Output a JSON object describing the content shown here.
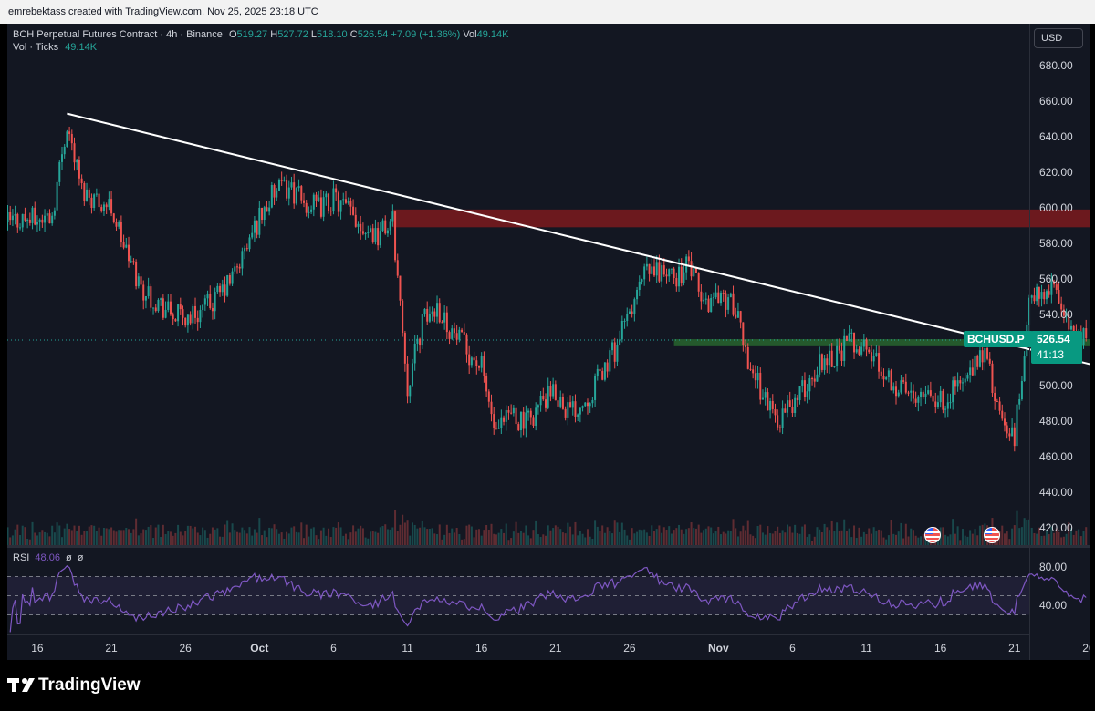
{
  "header": {
    "attribution": "emrebektass created with TradingView.com, Nov 25, 2025 23:18 UTC"
  },
  "legend": {
    "symbol": "BCH Perpetual Futures Contract · 4h · Binance",
    "o_label": "O",
    "o": "519.27",
    "h_label": "H",
    "h": "527.72",
    "l_label": "L",
    "l": "518.10",
    "c_label": "C",
    "c": "526.54",
    "change": "+7.09 (+1.36%)",
    "vol_label": "Vol",
    "vol": "49.14K",
    "vol_ticks_label": "Vol · Ticks",
    "vol_ticks": "49.14K"
  },
  "currency_button": "USD",
  "price_axis": [
    "680.00",
    "660.00",
    "640.00",
    "620.00",
    "600.00",
    "580.00",
    "560.00",
    "540.00",
    "500.00",
    "480.00",
    "460.00",
    "440.00",
    "420.00"
  ],
  "rsi_axis": [
    "80.00",
    "40.00"
  ],
  "rsi_legend": {
    "label": "RSI",
    "value": "48.06",
    "x1": "ø",
    "x2": "ø"
  },
  "time_axis": [
    {
      "label": "16",
      "bold": false
    },
    {
      "label": "21",
      "bold": false
    },
    {
      "label": "26",
      "bold": false
    },
    {
      "label": "Oct",
      "bold": true
    },
    {
      "label": "6",
      "bold": false
    },
    {
      "label": "11",
      "bold": false
    },
    {
      "label": "16",
      "bold": false
    },
    {
      "label": "21",
      "bold": false
    },
    {
      "label": "26",
      "bold": false
    },
    {
      "label": "Nov",
      "bold": true
    },
    {
      "label": "6",
      "bold": false
    },
    {
      "label": "11",
      "bold": false
    },
    {
      "label": "16",
      "bold": false
    },
    {
      "label": "21",
      "bold": false
    },
    {
      "label": "26",
      "bold": false
    },
    {
      "label": "Dec",
      "bold": true
    }
  ],
  "last_price": {
    "symbol": "BCHUSD.P",
    "price": "526.54",
    "countdown": "41:13"
  },
  "colors": {
    "up": "#26a69a",
    "down": "#ef5350",
    "rsi": "#7e57c2",
    "resistance": "#b71c1c",
    "support": "#2e7d32"
  },
  "footer": {
    "brand": "TradingView"
  },
  "chart_data": {
    "type": "candlestick",
    "symbol": "BCHUSD.P",
    "timeframe": "4h",
    "x_range": [
      "Sep 14, 2025",
      "Nov 25, 2025"
    ],
    "ylim": [
      410,
      690
    ],
    "closes_daily": [
      [
        "Sep 14",
        592
      ],
      [
        "Sep 15",
        594
      ],
      [
        "Sep 16",
        593
      ],
      [
        "Sep 17",
        596
      ],
      [
        "Sep 18",
        648
      ],
      [
        "Sep 19",
        610
      ],
      [
        "Sep 20",
        605
      ],
      [
        "Sep 21",
        600
      ],
      [
        "Sep 22",
        575
      ],
      [
        "Sep 23",
        555
      ],
      [
        "Sep 24",
        548
      ],
      [
        "Sep 25",
        540
      ],
      [
        "Sep 26",
        538
      ],
      [
        "Sep 27",
        542
      ],
      [
        "Sep 28",
        548
      ],
      [
        "Sep 29",
        558
      ],
      [
        "Sep 30",
        575
      ],
      [
        "Oct 1",
        595
      ],
      [
        "Oct 2",
        608
      ],
      [
        "Oct 3",
        612
      ],
      [
        "Oct 4",
        602
      ],
      [
        "Oct 5",
        600
      ],
      [
        "Oct 6",
        605
      ],
      [
        "Oct 7",
        598
      ],
      [
        "Oct 8",
        590
      ],
      [
        "Oct 9",
        585
      ],
      [
        "Oct 10",
        592
      ],
      [
        "Oct 11",
        500
      ],
      [
        "Oct 12",
        535
      ],
      [
        "Oct 13",
        545
      ],
      [
        "Oct 14",
        530
      ],
      [
        "Oct 15",
        520
      ],
      [
        "Oct 16",
        510
      ],
      [
        "Oct 17",
        470
      ],
      [
        "Oct 18",
        485
      ],
      [
        "Oct 19",
        478
      ],
      [
        "Oct 20",
        490
      ],
      [
        "Oct 21",
        495
      ],
      [
        "Oct 22",
        485
      ],
      [
        "Oct 23",
        492
      ],
      [
        "Oct 24",
        505
      ],
      [
        "Oct 25",
        520
      ],
      [
        "Oct 26",
        540
      ],
      [
        "Oct 27",
        562
      ],
      [
        "Oct 28",
        565
      ],
      [
        "Oct 29",
        560
      ],
      [
        "Oct 30",
        568
      ],
      [
        "Oct 31",
        545
      ],
      [
        "Nov 1",
        552
      ],
      [
        "Nov 2",
        545
      ],
      [
        "Nov 3",
        515
      ],
      [
        "Nov 4",
        495
      ],
      [
        "Nov 5",
        480
      ],
      [
        "Nov 6",
        490
      ],
      [
        "Nov 7",
        500
      ],
      [
        "Nov 8",
        515
      ],
      [
        "Nov 9",
        518
      ],
      [
        "Nov 10",
        525
      ],
      [
        "Nov 11",
        520
      ],
      [
        "Nov 12",
        510
      ],
      [
        "Nov 13",
        500
      ],
      [
        "Nov 14",
        495
      ],
      [
        "Nov 15",
        500
      ],
      [
        "Nov 16",
        490
      ],
      [
        "Nov 17",
        500
      ],
      [
        "Nov 18",
        505
      ],
      [
        "Nov 19",
        520
      ],
      [
        "Nov 20",
        480
      ],
      [
        "Nov 21",
        470
      ],
      [
        "Nov 22",
        545
      ],
      [
        "Nov 23",
        555
      ],
      [
        "Nov 24",
        550
      ],
      [
        "Nov 25",
        526.54
      ]
    ],
    "volume_label": "Vol · Ticks",
    "rsi": {
      "last": 48.06,
      "bands": [
        70,
        30
      ],
      "ylim": [
        10,
        90
      ]
    },
    "annotations": [
      {
        "type": "trendline",
        "from": [
          "Sep 18",
          653
        ],
        "to": [
          "Nov 29",
          506
        ],
        "color": "#ffffff"
      },
      {
        "type": "zone",
        "label": "resistance",
        "from_date": "Oct 10",
        "to_date": "Dec 1",
        "y": [
          589,
          599
        ]
      },
      {
        "type": "zone",
        "label": "support",
        "from_date": "Oct 29",
        "to_date": "Nov 28",
        "y": [
          522,
          526
        ]
      }
    ]
  }
}
